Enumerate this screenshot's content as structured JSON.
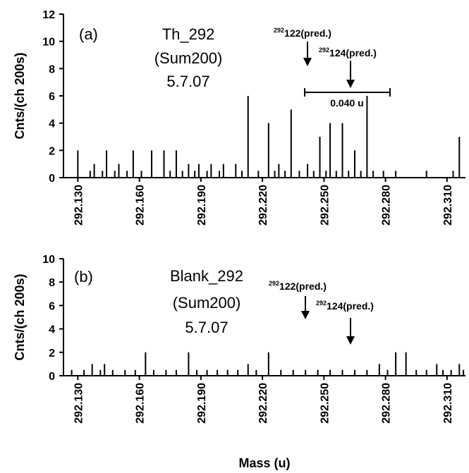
{
  "figure": {
    "xlabel": "Mass (u)",
    "ylabel": "Cnts/(ch 200s)"
  },
  "chart_data": [
    {
      "type": "bar",
      "panel_label": "(a)",
      "annotation_lines": [
        "Th_292",
        "(Sum200)",
        "5.7.07"
      ],
      "xlim": [
        292.123,
        292.319
      ],
      "ylim": [
        0,
        12
      ],
      "yticks": [
        0,
        2,
        4,
        6,
        8,
        10,
        12
      ],
      "xticks": [
        "292.130",
        "292.160",
        "292.190",
        "292.220",
        "292.250",
        "292.280",
        "292.310"
      ],
      "ylabel": "Cnts/(ch 200s)",
      "grid": false,
      "bars": [
        {
          "x": 292.13,
          "y": 2
        },
        {
          "x": 292.136,
          "y": 0.5
        },
        {
          "x": 292.138,
          "y": 1
        },
        {
          "x": 292.142,
          "y": 0.5
        },
        {
          "x": 292.144,
          "y": 2
        },
        {
          "x": 292.148,
          "y": 0.5
        },
        {
          "x": 292.15,
          "y": 1
        },
        {
          "x": 292.154,
          "y": 0.5
        },
        {
          "x": 292.157,
          "y": 2
        },
        {
          "x": 292.161,
          "y": 0.5
        },
        {
          "x": 292.166,
          "y": 2
        },
        {
          "x": 292.172,
          "y": 2
        },
        {
          "x": 292.175,
          "y": 0.5
        },
        {
          "x": 292.178,
          "y": 2
        },
        {
          "x": 292.181,
          "y": 0.5
        },
        {
          "x": 292.184,
          "y": 1
        },
        {
          "x": 292.187,
          "y": 0.5
        },
        {
          "x": 292.189,
          "y": 1
        },
        {
          "x": 292.193,
          "y": 0.5
        },
        {
          "x": 292.195,
          "y": 1
        },
        {
          "x": 292.199,
          "y": 0.5
        },
        {
          "x": 292.201,
          "y": 1
        },
        {
          "x": 292.207,
          "y": 1
        },
        {
          "x": 292.21,
          "y": 0.5
        },
        {
          "x": 292.213,
          "y": 6
        },
        {
          "x": 292.218,
          "y": 0.5
        },
        {
          "x": 292.223,
          "y": 4
        },
        {
          "x": 292.226,
          "y": 0.5
        },
        {
          "x": 292.228,
          "y": 1
        },
        {
          "x": 292.231,
          "y": 0.5
        },
        {
          "x": 292.234,
          "y": 5
        },
        {
          "x": 292.238,
          "y": 0.5
        },
        {
          "x": 292.242,
          "y": 1
        },
        {
          "x": 292.245,
          "y": 0.5
        },
        {
          "x": 292.248,
          "y": 3
        },
        {
          "x": 292.251,
          "y": 0.5
        },
        {
          "x": 292.253,
          "y": 4
        },
        {
          "x": 292.256,
          "y": 0.5
        },
        {
          "x": 292.259,
          "y": 4
        },
        {
          "x": 292.262,
          "y": 0.5
        },
        {
          "x": 292.265,
          "y": 2
        },
        {
          "x": 292.268,
          "y": 0.5
        },
        {
          "x": 292.271,
          "y": 6
        },
        {
          "x": 292.274,
          "y": 0.5
        },
        {
          "x": 292.279,
          "y": 0.5
        },
        {
          "x": 292.285,
          "y": 0.5
        },
        {
          "x": 292.3,
          "y": 0.5
        },
        {
          "x": 292.313,
          "y": 0.5
        },
        {
          "x": 292.316,
          "y": 3
        }
      ],
      "predictions": [
        {
          "label": "122(pred.)",
          "superscript": "292",
          "x": 292.2165
        },
        {
          "label": "124(pred.)",
          "superscript": "292",
          "x": 292.2305
        }
      ],
      "scale_bar": {
        "label": "0.040 u",
        "x_start": 292.2155,
        "x_end": 292.2555,
        "y": 6.3
      }
    },
    {
      "type": "bar",
      "panel_label": "(b)",
      "annotation_lines": [
        "Blank_292",
        "(Sum200)",
        "5.7.07"
      ],
      "xlim": [
        292.123,
        292.319
      ],
      "ylim": [
        0,
        10
      ],
      "yticks": [
        0,
        2,
        4,
        6,
        8,
        10
      ],
      "xticks": [
        "292.130",
        "292.160",
        "292.190",
        "292.220",
        "292.250",
        "292.280",
        "292.310"
      ],
      "ylabel": "Cnts/(ch 200s)",
      "grid": false,
      "bars": [
        {
          "x": 292.127,
          "y": 0.5
        },
        {
          "x": 292.133,
          "y": 0.5
        },
        {
          "x": 292.137,
          "y": 1
        },
        {
          "x": 292.141,
          "y": 0.5
        },
        {
          "x": 292.143,
          "y": 1
        },
        {
          "x": 292.147,
          "y": 0.5
        },
        {
          "x": 292.153,
          "y": 0.5
        },
        {
          "x": 292.158,
          "y": 0.5
        },
        {
          "x": 292.163,
          "y": 2
        },
        {
          "x": 292.167,
          "y": 0.5
        },
        {
          "x": 292.173,
          "y": 0.5
        },
        {
          "x": 292.178,
          "y": 0.5
        },
        {
          "x": 292.184,
          "y": 2
        },
        {
          "x": 292.188,
          "y": 0.5
        },
        {
          "x": 292.193,
          "y": 0.5
        },
        {
          "x": 292.198,
          "y": 0.5
        },
        {
          "x": 292.203,
          "y": 0.5
        },
        {
          "x": 292.208,
          "y": 0.5
        },
        {
          "x": 292.213,
          "y": 1
        },
        {
          "x": 292.217,
          "y": 0.5
        },
        {
          "x": 292.223,
          "y": 2
        },
        {
          "x": 292.229,
          "y": 0.5
        },
        {
          "x": 292.235,
          "y": 0.5
        },
        {
          "x": 292.241,
          "y": 0.5
        },
        {
          "x": 292.247,
          "y": 0.5
        },
        {
          "x": 292.253,
          "y": 0.5
        },
        {
          "x": 292.259,
          "y": 0.5
        },
        {
          "x": 292.265,
          "y": 0.5
        },
        {
          "x": 292.271,
          "y": 0.5
        },
        {
          "x": 292.277,
          "y": 1
        },
        {
          "x": 292.281,
          "y": 0.5
        },
        {
          "x": 292.285,
          "y": 2
        },
        {
          "x": 292.29,
          "y": 2
        },
        {
          "x": 292.295,
          "y": 0.5
        },
        {
          "x": 292.3,
          "y": 0.5
        },
        {
          "x": 292.305,
          "y": 1
        },
        {
          "x": 292.308,
          "y": 0.5
        },
        {
          "x": 292.312,
          "y": 0.5
        },
        {
          "x": 292.316,
          "y": 1
        },
        {
          "x": 292.318,
          "y": 0.5
        }
      ],
      "predictions": [
        {
          "label": "122(pred.)",
          "superscript": "292",
          "x": 292.2165
        },
        {
          "label": "124(pred.)",
          "superscript": "292",
          "x": 292.2305
        }
      ]
    }
  ]
}
